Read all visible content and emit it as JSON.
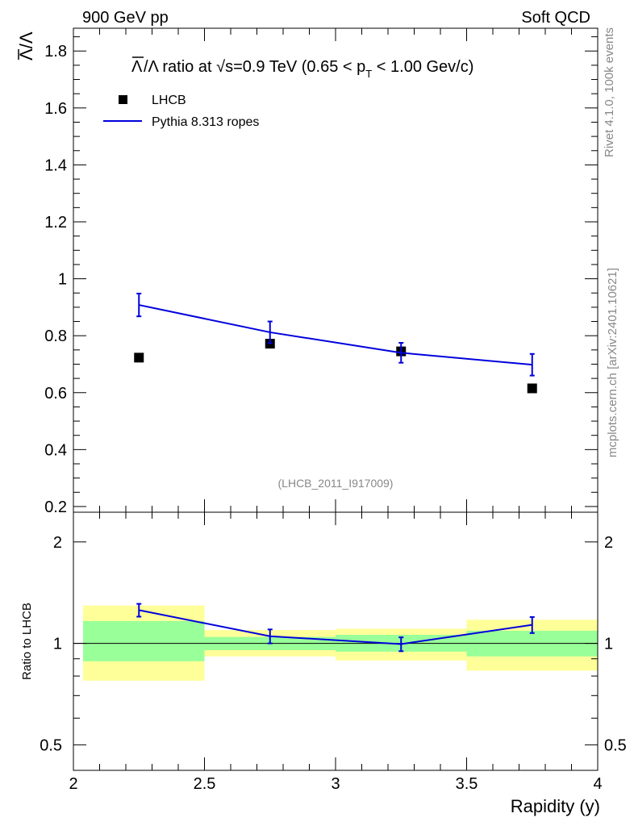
{
  "header": {
    "left": "900 GeV pp",
    "right": "Soft QCD"
  },
  "side_text": {
    "rivet": "Rivet 4.1.0,  100k events",
    "mcplots": "mcplots.cern.ch [arXiv:2401.10621]"
  },
  "chart_data": [
    {
      "type": "line",
      "panel": "main",
      "title": "Λ̄/Λ ratio at √s=0.9 TeV (0.65 < pT < 1.00 Gev/c)",
      "title_parts": {
        "prefix": "/Λ ratio at ",
        "sqrt": "√",
        "s_energy": "s=0.9 TeV (0.65 < p",
        "sub": "T",
        "suffix": " < 1.00 Gev/c)"
      },
      "ylabel": "Λ̄/Λ",
      "ylabel_parts": {
        "bar": "Λ",
        "rest": "/Λ"
      },
      "xlim": [
        2.0,
        4.0
      ],
      "ylim": [
        0.18,
        1.88
      ],
      "yticks": [
        0.2,
        0.4,
        0.6,
        0.8,
        1.0,
        1.2,
        1.4,
        1.6,
        1.8
      ],
      "ytick_labels": [
        "0.2",
        "0.4",
        "0.6",
        "0.8",
        "1",
        "1.2",
        "1.4",
        "1.6",
        "1.8"
      ],
      "analysis_label": "(LHCB_2011_I917009)",
      "legend": [
        {
          "name": "LHCB",
          "marker": "square",
          "color": "#000000"
        },
        {
          "name": "Pythia 8.313 ropes",
          "marker": "line",
          "color": "#0000dd"
        }
      ],
      "series": [
        {
          "name": "LHCB",
          "x": [
            2.25,
            2.75,
            3.25,
            3.75
          ],
          "y": [
            0.723,
            0.772,
            0.745,
            0.615
          ]
        },
        {
          "name": "Pythia 8.313 ropes",
          "x": [
            2.25,
            2.75,
            3.25,
            3.75
          ],
          "y": [
            0.908,
            0.812,
            0.74,
            0.698
          ],
          "yerr": [
            0.04,
            0.038,
            0.035,
            0.038
          ]
        }
      ]
    },
    {
      "type": "line",
      "panel": "ratio",
      "ylabel": "Ratio to LHCB",
      "xlabel": "Rapidity (y)",
      "xlim": [
        2.0,
        4.0
      ],
      "xticks": [
        2.0,
        2.5,
        3.0,
        3.5,
        4.0
      ],
      "xtick_labels": [
        "2",
        "2.5",
        "3",
        "3.5",
        "4"
      ],
      "ylim": [
        0.42,
        2.45
      ],
      "yscale": "log",
      "yticks": [
        0.5,
        1.0,
        2.0
      ],
      "ytick_labels": [
        "0.5",
        "1",
        "2"
      ],
      "bands": [
        {
          "xmin": 2.0,
          "xmax": 2.5,
          "yellow": [
            0.775,
            1.295
          ],
          "green": [
            0.885,
            1.165
          ]
        },
        {
          "xmin": 2.5,
          "xmax": 3.0,
          "yellow": [
            0.915,
            1.095
          ],
          "green": [
            0.955,
            1.045
          ]
        },
        {
          "xmin": 3.0,
          "xmax": 3.5,
          "yellow": [
            0.89,
            1.105
          ],
          "green": [
            0.945,
            1.06
          ]
        },
        {
          "xmin": 3.5,
          "xmax": 4.0,
          "yellow": [
            0.83,
            1.175
          ],
          "green": [
            0.915,
            1.09
          ]
        }
      ],
      "band_colors": {
        "yellow": "#ffff99",
        "green": "#99ff99"
      },
      "series": [
        {
          "name": "Pythia 8.313 ropes",
          "x": [
            2.25,
            2.75,
            3.25,
            3.75
          ],
          "y": [
            1.255,
            1.05,
            0.995,
            1.135
          ],
          "yerr": [
            0.055,
            0.05,
            0.047,
            0.062
          ],
          "color": "#0000dd"
        }
      ]
    }
  ]
}
